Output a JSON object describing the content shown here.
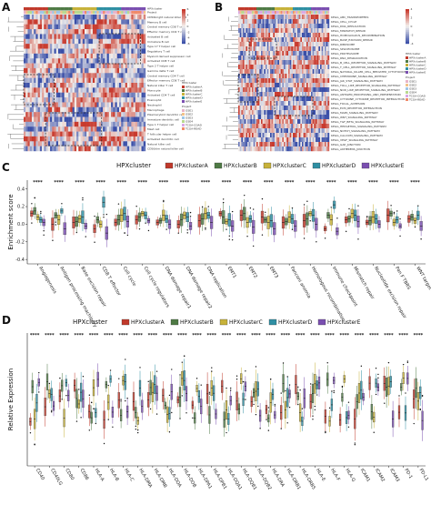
{
  "panels": {
    "A": {
      "label": "A"
    },
    "B": {
      "label": "B"
    },
    "C": {
      "label": "C"
    },
    "D": {
      "label": "D"
    }
  },
  "heatmapA": {
    "rows": [
      "CD56bright natural killer cell",
      "Memory B cell",
      "Central memory CD8 T cell",
      "Effector memory CD4 T cell",
      "Activated B cell",
      "Immature B cell",
      "Type 17 T helper cell",
      "Regulatory T cell",
      "Myeloid derived suppressor cell",
      "Activated CD8 T cell",
      "Type 2 T helper cell",
      "Gamma delta T cell",
      "Central memory CD4 T cell",
      "Effector memory CD8 T cell",
      "Natural killer T cell",
      "Monocyte",
      "Activated CD4 T cell",
      "Eosinophil",
      "Neutrophil",
      "Macrophage",
      "Plasmacytoid dendritic cell",
      "Immature dendritic cell",
      "Type 1 T helper cell",
      "Mast cell",
      "T follicular helper cell",
      "Activated dendritic cell",
      "Natural killer cell",
      "CD56dim natural killer cell"
    ],
    "annotation_rows": [
      "HPXcluster",
      "Project"
    ],
    "scale": [
      "6",
      "4",
      "2",
      "0",
      "-2",
      "-4",
      "-6"
    ],
    "legend_title": "HPXcluster",
    "legend_items": [
      "HPXclusterA",
      "HPXclusterB",
      "HPXclusterC",
      "HPXclusterD",
      "HPXclusterE"
    ],
    "project_title": "Project",
    "project_items": [
      "GSE1",
      "GSE2",
      "GSE3",
      "GSE4",
      "TCGA-COAD",
      "TCGA-READ"
    ]
  },
  "heatmapB": {
    "rows": [
      "KEGG_ABC_TRANSPORTERS",
      "KEGG_CELL_CYCLE",
      "KEGG_DNA_REPLICATION",
      "KEGG_MISMATCH_REPAIR",
      "KEGG_HOMOLOGOUS_RECOMBINATION",
      "KEGG_BASE_EXCISION_REPAIR",
      "KEGG_RIBOSOME",
      "KEGG_SPLICEOSOME",
      "KEGG_PROTEASOME",
      "KEGG_RNA_DEGRADATION",
      "KEGG_B_CELL_RECEPTOR_SIGNALING_PATHWAY",
      "KEGG_T_CELL_RECEPTOR_SIGNALING_PATHWAY",
      "KEGG_NATURAL_KILLER_CELL_MEDIATED_CYTOTOXICITY",
      "KEGG_CHEMOKINE_SIGNALING_PATHWAY",
      "KEGG_JAK_STAT_SIGNALING_PATHWAY",
      "KEGG_TOLL_LIKE_RECEPTOR_SIGNALING_PATHWAY",
      "KEGG_NOD_LIKE_RECEPTOR_SIGNALING_PATHWAY",
      "KEGG_ANTIGEN_PROCESSING_AND_PRESENTATION",
      "KEGG_CYTOKINE_CYTOKINE_RECEPTOR_INTERACTION",
      "KEGG_FOCAL_ADHESION",
      "KEGG_ECM_RECEPTOR_INTERACTION",
      "KEGG_MAPK_SIGNALING_PATHWAY",
      "KEGG_WNT_SIGNALING_PATHWAY",
      "KEGG_TGF_BETA_SIGNALING_PATHWAY",
      "KEGG_HEDGEHOG_SIGNALING_PATHWAY",
      "KEGG_NOTCH_SIGNALING_PATHWAY",
      "KEGG_CALCIUM_SIGNALING_PATHWAY",
      "KEGG_VEGF_SIGNALING_PATHWAY",
      "KEGG_GAP_JUNCTION",
      "KEGG_ADHERENS_JUNCTION"
    ],
    "scale": [
      "4",
      "2",
      "0",
      "-2",
      "-4"
    ],
    "legend_title": "HPXcluster",
    "legend_items": [
      "HPXclusterA",
      "HPXclusterB",
      "HPXclusterC",
      "HPXclusterD",
      "HPXclusterE"
    ],
    "project_title": "Project",
    "project_items": [
      "GSE1",
      "GSE2",
      "GSE3",
      "GSE4",
      "TCGA-COAD",
      "TCGA-READ"
    ]
  },
  "colors": {
    "A": "#c0392b",
    "B": "#4f7a45",
    "C": "#c7b23a",
    "D": "#2f8fa3",
    "E": "#7a4fb0",
    "heat_high": "#c83a2e",
    "heat_mid": "#f4f2ee",
    "heat_low": "#3a4fa8",
    "proj": [
      "#e8b4c8",
      "#f3c28a",
      "#9ec6e8",
      "#b8d98f",
      "#d9a8e6",
      "#f08a6a"
    ]
  },
  "chart_data": [
    {
      "panel": "C",
      "type": "boxplot",
      "legend_title": "HPXcluster",
      "legend": [
        "HPXclusterA",
        "HPXclusterB",
        "HPXclusterC",
        "HPXclusterD",
        "HPXclusterE"
      ],
      "ylabel": "Enrichment score",
      "yticks": [
        "0.4",
        "0.2",
        "0.0",
        "-0.2",
        "-0.4"
      ],
      "ylim": [
        -0.45,
        0.5
      ],
      "significance": "****",
      "categories": [
        "Angiogenesis",
        "Antigen processing machinery",
        "Base excision repair",
        "CD8 T effector",
        "Cell cycle",
        "Cell cycle regulators",
        "DNA damage repair1",
        "DNA damage repair2",
        "DNA replication",
        "EMT1",
        "EMT2",
        "EMT3",
        "Fanconi anemia",
        "Homologous recombination",
        "Immune checkpoint",
        "Mismatch repair",
        "Nucleotide excision repair",
        "Pan F TBRS",
        "WNT target"
      ],
      "medians": [
        [
          0.12,
          0.15,
          0.08,
          0.05,
          0.02
        ],
        [
          0.0,
          0.1,
          0.05,
          0.15,
          -0.05
        ],
        [
          0.02,
          0.03,
          0.06,
          0.08,
          -0.02
        ],
        [
          -0.05,
          0.05,
          0.0,
          0.25,
          -0.1
        ],
        [
          0.02,
          0.05,
          0.1,
          0.12,
          0.03
        ],
        [
          0.05,
          0.08,
          0.12,
          0.1,
          0.04
        ],
        [
          0.02,
          0.04,
          0.1,
          0.06,
          0.0
        ],
        [
          0.0,
          0.05,
          0.1,
          0.08,
          -0.02
        ],
        [
          0.04,
          0.06,
          0.12,
          0.1,
          0.02
        ],
        [
          0.12,
          0.08,
          0.03,
          0.05,
          -0.02
        ],
        [
          0.1,
          0.12,
          0.02,
          0.06,
          -0.03
        ],
        [
          0.08,
          0.05,
          0.02,
          0.04,
          -0.05
        ],
        [
          0.02,
          0.03,
          0.08,
          0.06,
          -0.02
        ],
        [
          0.04,
          0.06,
          0.12,
          0.1,
          0.0
        ],
        [
          -0.05,
          0.1,
          0.05,
          0.22,
          -0.08
        ],
        [
          0.05,
          0.06,
          0.12,
          0.1,
          0.03
        ],
        [
          0.02,
          0.04,
          0.08,
          0.06,
          0.0
        ],
        [
          0.1,
          0.12,
          0.02,
          0.05,
          -0.02
        ],
        [
          0.06,
          0.08,
          0.04,
          0.1,
          -0.02
        ]
      ]
    },
    {
      "panel": "D",
      "type": "boxplot",
      "legend_title": "HPXcluster",
      "legend": [
        "HPXclusterA",
        "HPXclusterB",
        "HPXclusterC",
        "HPXclusterD",
        "HPXclusterE"
      ],
      "ylabel": "Relative Expression",
      "significance": "****",
      "categories": [
        "CD40",
        "CD40LG",
        "CD80",
        "CD86",
        "HLA-A",
        "HLA-B",
        "HLA-C",
        "HLA-DMA",
        "HLA-DMB",
        "HLA-DOA",
        "HLA-DOB",
        "HLA-DPA1",
        "HLA-DPB1",
        "HLA-DQA1",
        "HLA-DQB1",
        "HLA-DQB2",
        "HLA-DRA",
        "HLA-DRB1",
        "HLA-DRB5",
        "HLA-E",
        "HLA-F",
        "HLA-G",
        "ICAM1",
        "ICAM2",
        "ICAM3",
        "PD-1",
        "PD-L1"
      ]
    }
  ]
}
